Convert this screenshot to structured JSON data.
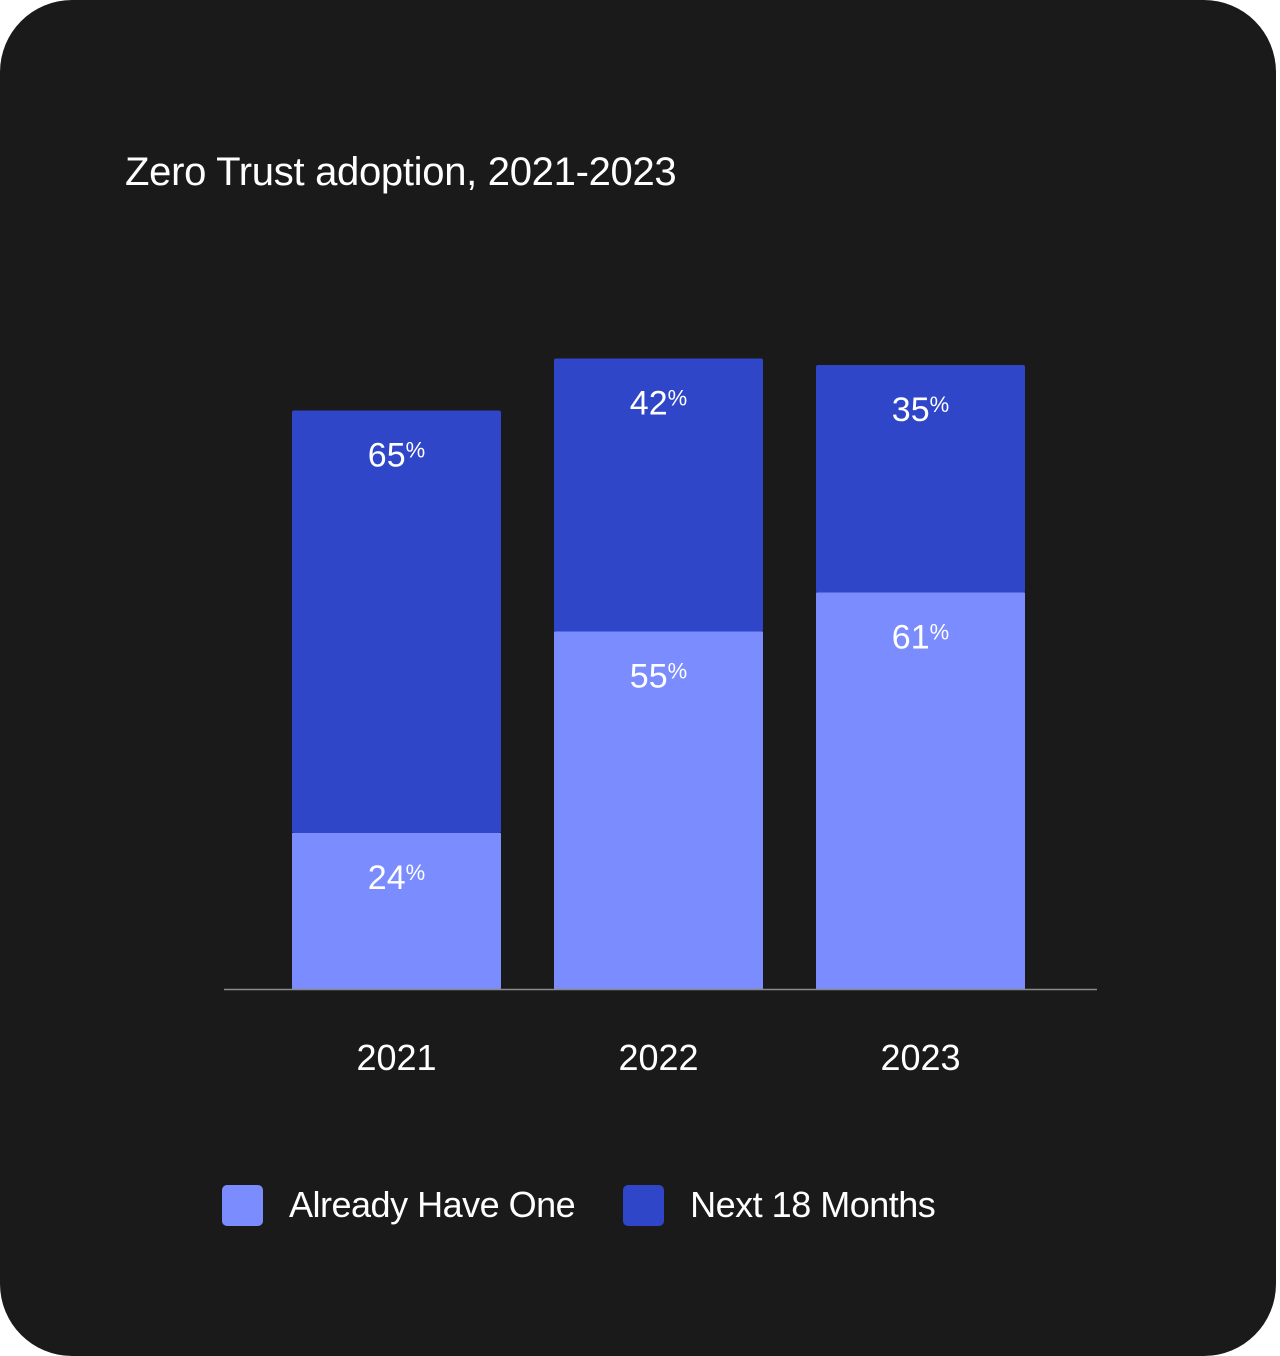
{
  "chart_data": {
    "type": "bar",
    "stacked": true,
    "title": "Zero Trust adoption, 2021-2023",
    "categories": [
      "2021",
      "2022",
      "2023"
    ],
    "series": [
      {
        "name": "Already Have One",
        "values": [
          24,
          55,
          61
        ],
        "color": "#7b8cfe"
      },
      {
        "name": "Next 18 Months",
        "values": [
          65,
          42,
          35
        ],
        "color": "#2f46c8"
      }
    ],
    "value_suffix": "%",
    "ylim": [
      0,
      100
    ],
    "grid": false,
    "legend_position": "bottom-left"
  },
  "colors": {
    "background": "#1a1a1a",
    "text": "#ffffff",
    "axis": "#8a8a8a"
  }
}
